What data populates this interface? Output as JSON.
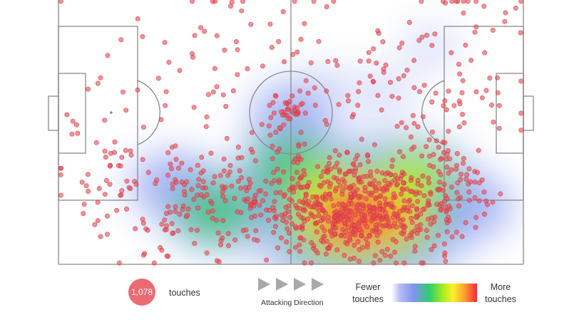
{
  "chart_data": {
    "type": "scatter",
    "subtype": "heatmap-with-points",
    "title": "",
    "attacking_direction": "left-to-right",
    "total_touches": 1078,
    "heat_centers": [
      {
        "x": 0.63,
        "y": 0.82,
        "weight": 1.0
      },
      {
        "x": 0.69,
        "y": 0.82,
        "weight": 0.85
      },
      {
        "x": 0.58,
        "y": 0.72,
        "weight": 0.55
      },
      {
        "x": 0.76,
        "y": 0.68,
        "weight": 0.5
      },
      {
        "x": 0.5,
        "y": 0.63,
        "weight": 0.45
      },
      {
        "x": 0.34,
        "y": 0.8,
        "weight": 0.45
      },
      {
        "x": 0.25,
        "y": 0.7,
        "weight": 0.35
      },
      {
        "x": 0.88,
        "y": 0.78,
        "weight": 0.35
      },
      {
        "x": 0.5,
        "y": 0.43,
        "weight": 0.3
      },
      {
        "x": 0.57,
        "y": 0.34,
        "weight": 0.18
      },
      {
        "x": 0.7,
        "y": 0.35,
        "weight": 0.18
      },
      {
        "x": 0.8,
        "y": 0.18,
        "weight": 0.15
      }
    ],
    "colorscale": [
      "#ffffff",
      "#b3bdf3",
      "#7f93ef",
      "#2fcf6a",
      "#a6ec21",
      "#ffef2a",
      "#fb9c2f",
      "#f3283b"
    ],
    "point_color": "#ec4a55"
  },
  "legend": {
    "touches_count": "1,078",
    "touches_label": "touches",
    "direction_label": "Attacking Direction",
    "fewer_label_1": "Fewer",
    "fewer_label_2": "touches",
    "more_label_1": "More",
    "more_label_2": "touches"
  },
  "colors": {
    "line": "#8a8a8a",
    "badge": "#ec6b73",
    "arrow": "#a9a9a9"
  }
}
